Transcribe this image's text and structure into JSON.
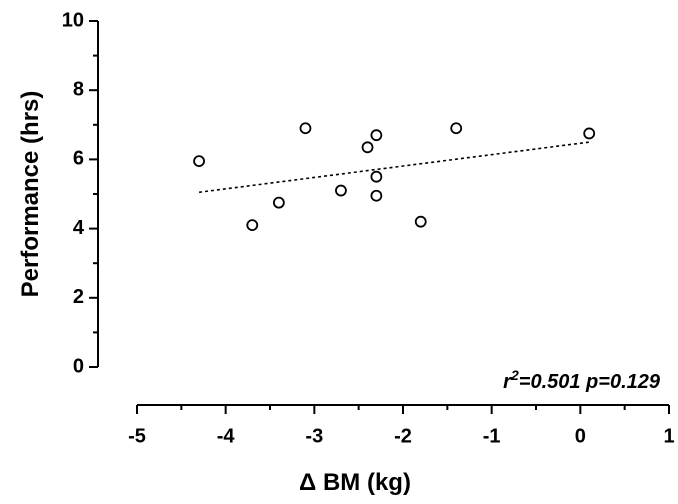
{
  "chart_data": {
    "type": "scatter",
    "x_label": "Δ BM (kg)",
    "y_label": "Performance (hrs)",
    "x": [
      -4.3,
      -3.7,
      -3.4,
      -3.1,
      -2.7,
      -2.4,
      -2.3,
      -2.3,
      -2.3,
      -1.8,
      -1.4,
      0.1
    ],
    "y": [
      5.95,
      4.1,
      4.75,
      6.9,
      5.1,
      6.35,
      6.7,
      5.5,
      4.95,
      4.2,
      6.9,
      6.75
    ],
    "color": "#000000",
    "trendline": {
      "x": [
        -4.3,
        0.1
      ],
      "y": [
        5.05,
        6.5
      ]
    },
    "annotation": {
      "base": "r",
      "sup": "2",
      "rest": "=0.501 p=0.129"
    },
    "xlim": [
      -5,
      1
    ],
    "xticks": [
      -5,
      -4,
      -3,
      -2,
      -1,
      0,
      1
    ],
    "xminorticks": [
      -4.5,
      -3.5,
      -2.5,
      -1.5,
      -0.5,
      0.5
    ],
    "ylim": [
      0,
      10
    ],
    "yticks": [
      0,
      2,
      4,
      6,
      8,
      10
    ],
    "yminorticks": [
      1,
      3,
      5,
      7,
      9
    ]
  }
}
